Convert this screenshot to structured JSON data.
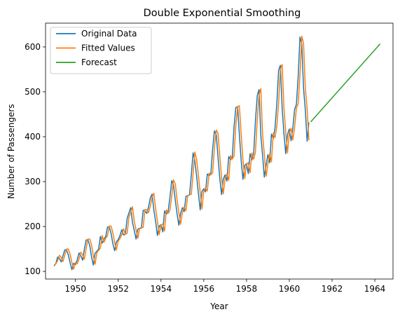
{
  "chart_data": {
    "type": "line",
    "title": "Double Exponential Smoothing",
    "xlabel": "Year",
    "ylabel": "Number of Passengers",
    "xlim": [
      1948.6,
      1964.85
    ],
    "ylim": [
      83,
      653
    ],
    "x_ticks": [
      1950,
      1952,
      1954,
      1956,
      1958,
      1960,
      1962,
      1964
    ],
    "y_ticks": [
      100,
      200,
      300,
      400,
      500,
      600
    ],
    "grid": false,
    "legend_position": "top-left",
    "series": [
      {
        "name": "Original Data",
        "color": "#1f77b4",
        "x_start": 1949.0,
        "x_step": 0.08333,
        "values": [
          112,
          118,
          132,
          129,
          121,
          135,
          148,
          148,
          136,
          119,
          104,
          118,
          115,
          126,
          141,
          135,
          125,
          149,
          170,
          170,
          158,
          133,
          114,
          140,
          145,
          150,
          178,
          163,
          172,
          178,
          199,
          199,
          184,
          162,
          146,
          166,
          171,
          180,
          193,
          181,
          183,
          218,
          230,
          242,
          209,
          191,
          172,
          194,
          196,
          196,
          236,
          235,
          229,
          243,
          264,
          272,
          237,
          211,
          180,
          201,
          204,
          188,
          235,
          227,
          234,
          264,
          302,
          293,
          259,
          229,
          203,
          229,
          242,
          233,
          267,
          269,
          270,
          315,
          364,
          347,
          312,
          274,
          237,
          278,
          284,
          277,
          317,
          313,
          318,
          374,
          413,
          405,
          355,
          306,
          271,
          306,
          315,
          301,
          356,
          348,
          355,
          422,
          465,
          467,
          404,
          347,
          305,
          336,
          340,
          318,
          362,
          348,
          363,
          435,
          491,
          505,
          404,
          359,
          310,
          337,
          360,
          342,
          406,
          396,
          420,
          472,
          548,
          559,
          463,
          407,
          362,
          405,
          417,
          391,
          419,
          461,
          472,
          535,
          622,
          606,
          508,
          461,
          390,
          432
        ]
      },
      {
        "name": "Fitted Values",
        "color": "#ff7f0e",
        "x_start": 1949.0,
        "x_step": 0.08333,
        "values": [
          114,
          117,
          124,
          136,
          131,
          122,
          137,
          150,
          150,
          138,
          120,
          105,
          120,
          117,
          128,
          143,
          137,
          127,
          151,
          172,
          172,
          160,
          135,
          116,
          142,
          147,
          152,
          180,
          165,
          174,
          180,
          201,
          201,
          186,
          164,
          148,
          168,
          173,
          182,
          195,
          183,
          185,
          220,
          232,
          244,
          211,
          193,
          174,
          196,
          198,
          198,
          238,
          237,
          231,
          245,
          266,
          274,
          239,
          213,
          182,
          203,
          206,
          190,
          237,
          229,
          236,
          266,
          304,
          295,
          261,
          231,
          205,
          231,
          244,
          235,
          269,
          271,
          272,
          317,
          366,
          349,
          314,
          276,
          239,
          280,
          286,
          279,
          319,
          315,
          320,
          376,
          415,
          407,
          357,
          308,
          273,
          308,
          317,
          303,
          358,
          350,
          357,
          424,
          467,
          469,
          406,
          349,
          307,
          338,
          342,
          320,
          364,
          350,
          365,
          437,
          493,
          507,
          406,
          361,
          312,
          339,
          362,
          344,
          408,
          398,
          422,
          474,
          550,
          561,
          465,
          409,
          364,
          407,
          419,
          393,
          421,
          463,
          474,
          537,
          624,
          608,
          510,
          463,
          392
        ]
      },
      {
        "name": "Forecast",
        "color": "#2ca02c",
        "x": [
          1961.0,
          1964.25
        ],
        "y": [
          433,
          607
        ]
      }
    ]
  }
}
